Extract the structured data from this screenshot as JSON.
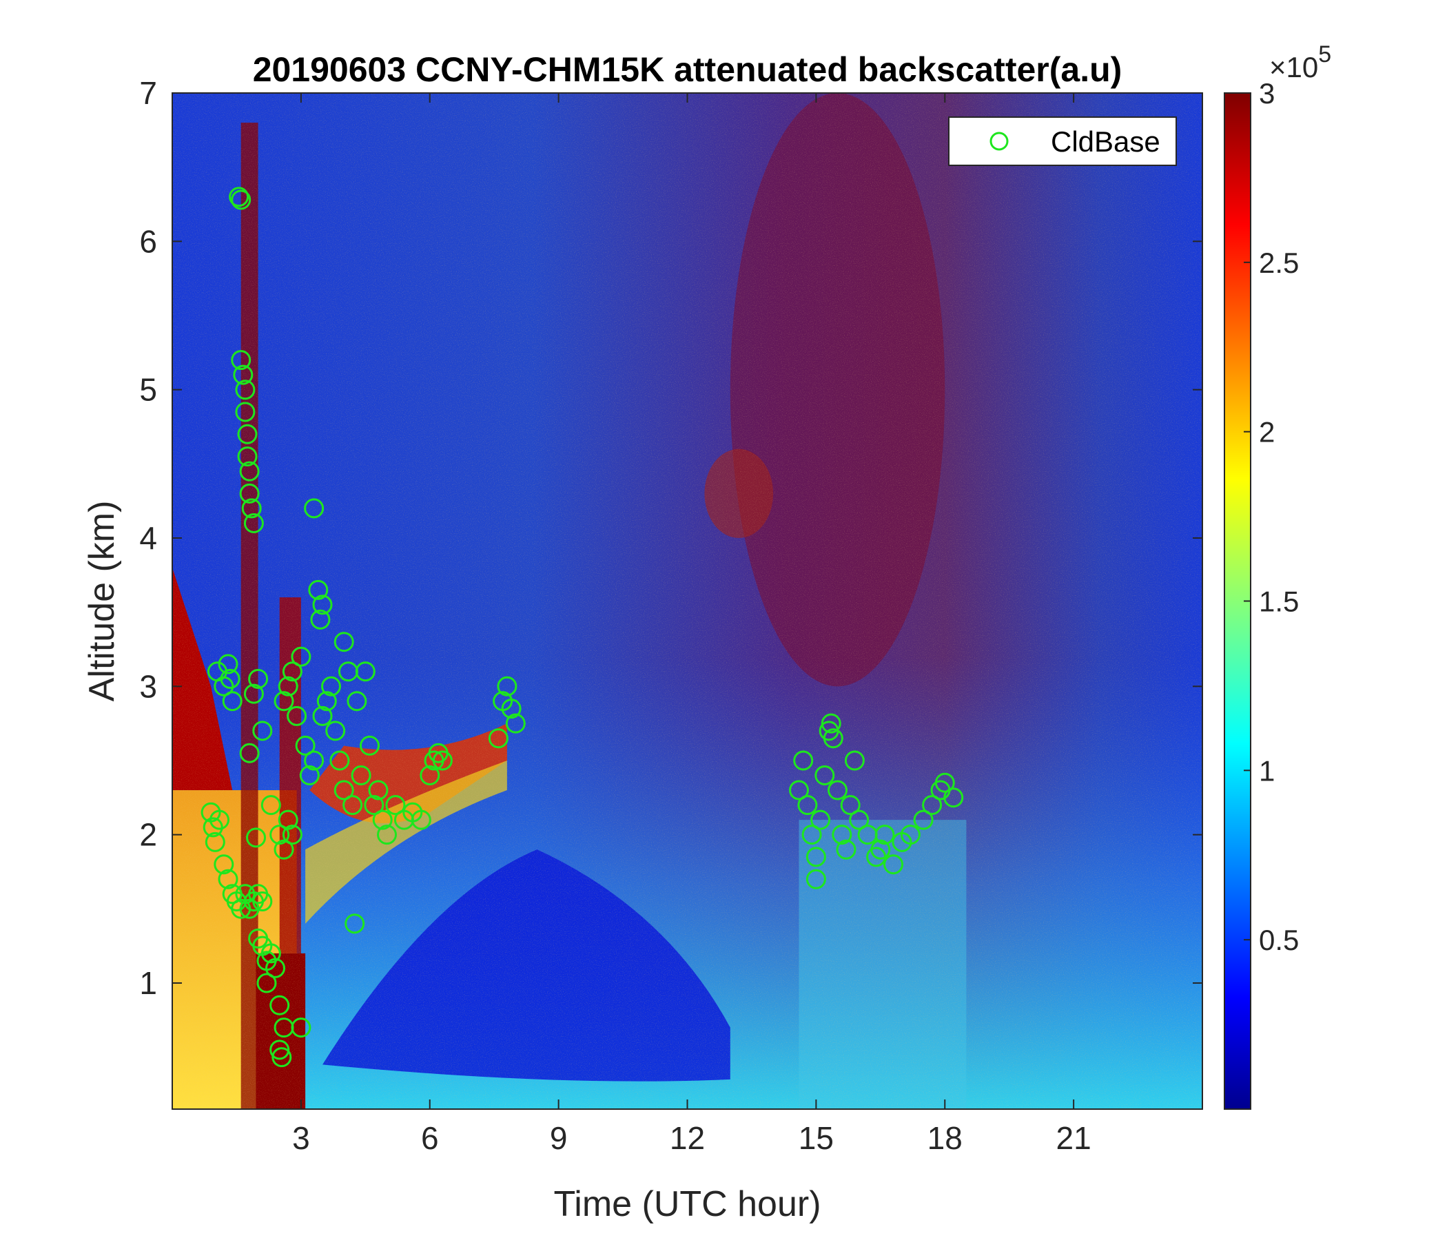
{
  "chart_data": {
    "type": "heatmap",
    "title": "20190603 CCNY-CHM15K attenuated backscatter(a.u)",
    "xlabel": "Time (UTC hour)",
    "ylabel": "Altitude (km)",
    "xlim": [
      0,
      24
    ],
    "ylim": [
      0.15,
      7
    ],
    "x_ticks": [
      3,
      6,
      9,
      12,
      15,
      18,
      21
    ],
    "y_ticks": [
      1,
      2,
      3,
      4,
      5,
      6,
      7
    ],
    "colorbar": {
      "colormap": "jet",
      "range": [
        0,
        300000
      ],
      "ticks": [
        {
          "value": 0.5,
          "label": "0.5"
        },
        {
          "value": 1,
          "label": "1"
        },
        {
          "value": 1.5,
          "label": "1.5"
        },
        {
          "value": 2,
          "label": "2"
        },
        {
          "value": 2.5,
          "label": "2.5"
        },
        {
          "value": 3,
          "label": "3"
        }
      ],
      "multiplier_base": "×10",
      "multiplier_exponent": "5"
    },
    "legend": {
      "placement": "top-right",
      "entries": [
        {
          "name": "CldBase",
          "marker": "open-circle",
          "color": "#1EE61E"
        }
      ]
    },
    "grid": false,
    "series": [
      {
        "name": "CldBase",
        "points": [
          [
            1.55,
            6.3
          ],
          [
            1.6,
            6.28
          ],
          [
            1.6,
            5.2
          ],
          [
            1.65,
            5.1
          ],
          [
            1.7,
            5.0
          ],
          [
            1.7,
            4.85
          ],
          [
            1.75,
            4.7
          ],
          [
            1.75,
            4.55
          ],
          [
            1.8,
            4.45
          ],
          [
            1.8,
            4.3
          ],
          [
            1.85,
            4.2
          ],
          [
            1.9,
            4.1
          ],
          [
            3.3,
            4.2
          ],
          [
            0.9,
            2.15
          ],
          [
            0.95,
            2.05
          ],
          [
            1.0,
            1.95
          ],
          [
            1.1,
            2.1
          ],
          [
            1.05,
            3.1
          ],
          [
            1.2,
            3.0
          ],
          [
            1.3,
            3.15
          ],
          [
            1.35,
            3.05
          ],
          [
            1.4,
            2.9
          ],
          [
            1.2,
            1.8
          ],
          [
            1.3,
            1.7
          ],
          [
            1.4,
            1.6
          ],
          [
            1.5,
            1.55
          ],
          [
            1.6,
            1.5
          ],
          [
            1.7,
            1.6
          ],
          [
            1.8,
            1.5
          ],
          [
            1.9,
            1.55
          ],
          [
            2.0,
            1.6
          ],
          [
            2.1,
            1.55
          ],
          [
            2.0,
            1.3
          ],
          [
            2.1,
            1.25
          ],
          [
            2.2,
            1.15
          ],
          [
            2.3,
            1.2
          ],
          [
            2.4,
            1.1
          ],
          [
            2.2,
            1.0
          ],
          [
            2.5,
            0.85
          ],
          [
            2.6,
            0.7
          ],
          [
            2.5,
            0.55
          ],
          [
            2.55,
            0.5
          ],
          [
            3.0,
            0.7
          ],
          [
            1.8,
            2.55
          ],
          [
            1.9,
            2.95
          ],
          [
            2.0,
            3.05
          ],
          [
            2.1,
            2.7
          ],
          [
            2.3,
            2.2
          ],
          [
            2.5,
            2.0
          ],
          [
            2.6,
            1.9
          ],
          [
            2.7,
            2.1
          ],
          [
            2.8,
            2.0
          ],
          [
            1.95,
            1.98
          ],
          [
            2.6,
            2.9
          ],
          [
            2.7,
            3.0
          ],
          [
            2.8,
            3.1
          ],
          [
            2.9,
            2.8
          ],
          [
            3.0,
            3.2
          ],
          [
            3.1,
            2.6
          ],
          [
            3.2,
            2.4
          ],
          [
            3.3,
            2.5
          ],
          [
            3.4,
            3.65
          ],
          [
            3.5,
            3.55
          ],
          [
            3.45,
            3.45
          ],
          [
            3.5,
            2.8
          ],
          [
            3.6,
            2.9
          ],
          [
            3.7,
            3.0
          ],
          [
            3.8,
            2.7
          ],
          [
            3.9,
            2.5
          ],
          [
            4.0,
            2.3
          ],
          [
            4.0,
            3.3
          ],
          [
            4.1,
            3.1
          ],
          [
            4.2,
            2.2
          ],
          [
            4.3,
            2.9
          ],
          [
            4.4,
            2.4
          ],
          [
            4.5,
            3.1
          ],
          [
            4.6,
            2.6
          ],
          [
            4.7,
            2.2
          ],
          [
            4.8,
            2.3
          ],
          [
            4.9,
            2.1
          ],
          [
            5.0,
            2.0
          ],
          [
            5.2,
            2.2
          ],
          [
            5.4,
            2.1
          ],
          [
            5.6,
            2.15
          ],
          [
            5.8,
            2.1
          ],
          [
            4.25,
            1.4
          ],
          [
            6.0,
            2.4
          ],
          [
            6.1,
            2.5
          ],
          [
            6.2,
            2.55
          ],
          [
            6.3,
            2.5
          ],
          [
            7.6,
            2.65
          ],
          [
            7.7,
            2.9
          ],
          [
            7.8,
            3.0
          ],
          [
            7.9,
            2.85
          ],
          [
            8.0,
            2.75
          ],
          [
            14.6,
            2.3
          ],
          [
            14.7,
            2.5
          ],
          [
            14.8,
            2.2
          ],
          [
            14.9,
            2.0
          ],
          [
            15.0,
            1.7
          ],
          [
            15.0,
            1.85
          ],
          [
            15.1,
            2.1
          ],
          [
            15.2,
            2.4
          ],
          [
            15.3,
            2.7
          ],
          [
            15.35,
            2.75
          ],
          [
            15.4,
            2.65
          ],
          [
            15.5,
            2.3
          ],
          [
            15.6,
            2.0
          ],
          [
            15.7,
            1.9
          ],
          [
            15.8,
            2.2
          ],
          [
            15.9,
            2.5
          ],
          [
            16.0,
            2.1
          ],
          [
            16.2,
            2.0
          ],
          [
            16.4,
            1.85
          ],
          [
            16.5,
            1.9
          ],
          [
            16.6,
            2.0
          ],
          [
            16.8,
            1.8
          ],
          [
            17.0,
            1.95
          ],
          [
            17.2,
            2.0
          ],
          [
            17.5,
            2.1
          ],
          [
            17.7,
            2.2
          ],
          [
            17.9,
            2.3
          ],
          [
            18.0,
            2.35
          ],
          [
            18.2,
            2.25
          ]
        ]
      }
    ]
  }
}
